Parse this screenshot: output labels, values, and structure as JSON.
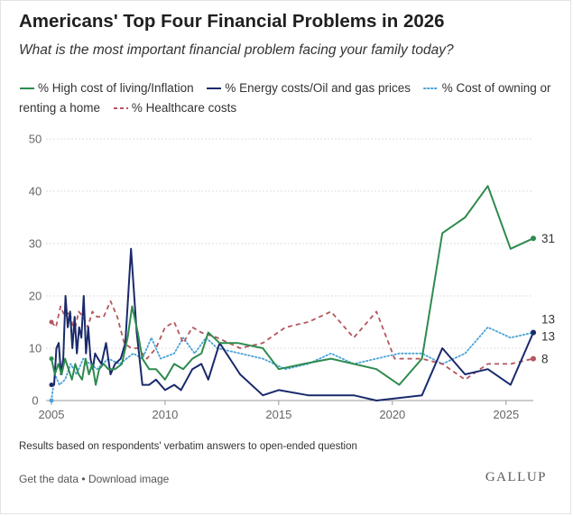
{
  "header": {
    "title": "Americans' Top Four Financial Problems in 2026",
    "subtitle": "What is the most important financial problem facing your family today?"
  },
  "legend": {
    "items": [
      {
        "label": "% High cost of living/Inflation",
        "color": "#2e8b4f",
        "style": "solid"
      },
      {
        "label": "% Energy costs/Oil and gas prices",
        "color": "#1a2a6c",
        "style": "solid"
      },
      {
        "label": "% Cost of owning or renting a home",
        "color": "#4aa3d8",
        "style": "dotted"
      },
      {
        "label": "% Healthcare costs",
        "color": "#b5565f",
        "style": "dashed"
      }
    ]
  },
  "note": "Results based on respondents' verbatim answers to open-ended question",
  "footer": {
    "get_data": "Get the data",
    "separator": "•",
    "download": "Download image",
    "logo": "GALLUP"
  },
  "chart_data": {
    "type": "line",
    "xlim": [
      2005,
      2026.2
    ],
    "ylim": [
      0,
      50
    ],
    "y_ticks": [
      0,
      10,
      20,
      30,
      40,
      50
    ],
    "x_ticks": [
      2005,
      2010,
      2015,
      2020,
      2025
    ],
    "grid": "horizontal",
    "series": [
      {
        "name": "% High cost of living/Inflation",
        "color": "#2e8b4f",
        "style": "solid",
        "end_label": "31",
        "points": [
          [
            2005.0,
            8
          ],
          [
            2005.15,
            5
          ],
          [
            2005.3,
            7
          ],
          [
            2005.45,
            5
          ],
          [
            2005.6,
            8
          ],
          [
            2005.75,
            6
          ],
          [
            2005.9,
            4
          ],
          [
            2006.05,
            7
          ],
          [
            2006.2,
            5
          ],
          [
            2006.35,
            4
          ],
          [
            2006.5,
            8
          ],
          [
            2006.65,
            5
          ],
          [
            2006.8,
            7
          ],
          [
            2006.95,
            3
          ],
          [
            2007.1,
            6
          ],
          [
            2007.3,
            7
          ],
          [
            2007.5,
            6
          ],
          [
            2007.8,
            6
          ],
          [
            2008.1,
            7
          ],
          [
            2008.35,
            12
          ],
          [
            2008.55,
            18
          ],
          [
            2008.8,
            13
          ],
          [
            2009.0,
            8
          ],
          [
            2009.3,
            6
          ],
          [
            2009.6,
            6
          ],
          [
            2010.0,
            4
          ],
          [
            2010.4,
            7
          ],
          [
            2010.8,
            6
          ],
          [
            2011.2,
            8
          ],
          [
            2011.6,
            9
          ],
          [
            2011.9,
            13
          ],
          [
            2012.4,
            11
          ],
          [
            2013.2,
            11
          ],
          [
            2014.3,
            10
          ],
          [
            2015.0,
            6
          ],
          [
            2016.1,
            7
          ],
          [
            2017.3,
            8
          ],
          [
            2018.3,
            7
          ],
          [
            2019.3,
            6
          ],
          [
            2020.3,
            3
          ],
          [
            2021.3,
            8
          ],
          [
            2022.2,
            32
          ],
          [
            2023.2,
            35
          ],
          [
            2024.2,
            41
          ],
          [
            2025.2,
            29
          ],
          [
            2026.2,
            31
          ]
        ]
      },
      {
        "name": "% Energy costs/Oil and gas prices",
        "color": "#1a2a6c",
        "style": "solid",
        "end_label": "13",
        "points": [
          [
            2005.0,
            3
          ],
          [
            2005.12,
            3
          ],
          [
            2005.22,
            10
          ],
          [
            2005.32,
            11
          ],
          [
            2005.42,
            5
          ],
          [
            2005.52,
            8
          ],
          [
            2005.62,
            20
          ],
          [
            2005.72,
            14
          ],
          [
            2005.82,
            17
          ],
          [
            2005.92,
            10
          ],
          [
            2006.02,
            16
          ],
          [
            2006.12,
            9
          ],
          [
            2006.22,
            14
          ],
          [
            2006.32,
            12
          ],
          [
            2006.42,
            20
          ],
          [
            2006.52,
            9
          ],
          [
            2006.62,
            14
          ],
          [
            2006.72,
            8
          ],
          [
            2006.82,
            6
          ],
          [
            2006.92,
            9
          ],
          [
            2007.05,
            8
          ],
          [
            2007.2,
            7
          ],
          [
            2007.4,
            11
          ],
          [
            2007.6,
            5
          ],
          [
            2007.8,
            7
          ],
          [
            2008.05,
            8
          ],
          [
            2008.25,
            11
          ],
          [
            2008.5,
            29
          ],
          [
            2008.75,
            13
          ],
          [
            2009.0,
            3
          ],
          [
            2009.3,
            3
          ],
          [
            2009.6,
            4
          ],
          [
            2010.0,
            2
          ],
          [
            2010.4,
            3
          ],
          [
            2010.7,
            2
          ],
          [
            2011.2,
            6
          ],
          [
            2011.6,
            7
          ],
          [
            2011.9,
            4
          ],
          [
            2012.4,
            11
          ],
          [
            2013.3,
            5
          ],
          [
            2014.3,
            1
          ],
          [
            2015.0,
            2
          ],
          [
            2016.3,
            1
          ],
          [
            2017.3,
            1
          ],
          [
            2018.3,
            1
          ],
          [
            2019.3,
            0
          ],
          [
            2020.3,
            0.5
          ],
          [
            2021.3,
            1
          ],
          [
            2022.2,
            10
          ],
          [
            2023.2,
            5
          ],
          [
            2024.2,
            6
          ],
          [
            2025.2,
            3
          ],
          [
            2026.2,
            13
          ]
        ]
      },
      {
        "name": "% Cost of owning or renting a home",
        "color": "#4aa3d8",
        "style": "dotted",
        "end_label": "13",
        "points": [
          [
            2005.0,
            0
          ],
          [
            2005.15,
            5
          ],
          [
            2005.35,
            3
          ],
          [
            2005.6,
            4
          ],
          [
            2005.85,
            7
          ],
          [
            2006.1,
            5
          ],
          [
            2006.4,
            8
          ],
          [
            2006.7,
            7
          ],
          [
            2007.0,
            6
          ],
          [
            2007.5,
            8
          ],
          [
            2008.0,
            7
          ],
          [
            2008.6,
            9
          ],
          [
            2009.0,
            8
          ],
          [
            2009.4,
            12
          ],
          [
            2009.8,
            8
          ],
          [
            2010.4,
            9
          ],
          [
            2010.8,
            12
          ],
          [
            2011.3,
            9
          ],
          [
            2011.8,
            12
          ],
          [
            2012.3,
            10
          ],
          [
            2013.3,
            9
          ],
          [
            2014.3,
            8
          ],
          [
            2015.3,
            6
          ],
          [
            2016.3,
            7
          ],
          [
            2017.3,
            9
          ],
          [
            2018.3,
            7
          ],
          [
            2019.3,
            8
          ],
          [
            2020.3,
            9
          ],
          [
            2021.3,
            9
          ],
          [
            2022.2,
            7
          ],
          [
            2023.2,
            9
          ],
          [
            2024.2,
            14
          ],
          [
            2025.2,
            12
          ],
          [
            2026.2,
            13
          ]
        ]
      },
      {
        "name": "% Healthcare costs",
        "color": "#b5565f",
        "style": "dashed",
        "end_label": "8",
        "points": [
          [
            2005.0,
            15
          ],
          [
            2005.2,
            14
          ],
          [
            2005.4,
            18
          ],
          [
            2005.6,
            16
          ],
          [
            2005.8,
            17
          ],
          [
            2006.0,
            13
          ],
          [
            2006.2,
            17
          ],
          [
            2006.4,
            16
          ],
          [
            2006.6,
            14
          ],
          [
            2006.8,
            17
          ],
          [
            2007.0,
            16
          ],
          [
            2007.3,
            16
          ],
          [
            2007.6,
            19
          ],
          [
            2007.9,
            16
          ],
          [
            2008.2,
            11
          ],
          [
            2008.5,
            10
          ],
          [
            2008.8,
            10
          ],
          [
            2009.2,
            8
          ],
          [
            2009.6,
            10
          ],
          [
            2010.0,
            14
          ],
          [
            2010.4,
            15
          ],
          [
            2010.8,
            11
          ],
          [
            2011.2,
            14
          ],
          [
            2011.6,
            13
          ],
          [
            2012.3,
            12
          ],
          [
            2013.3,
            10
          ],
          [
            2014.3,
            11
          ],
          [
            2015.3,
            14
          ],
          [
            2016.3,
            15
          ],
          [
            2017.3,
            17
          ],
          [
            2018.3,
            12
          ],
          [
            2019.3,
            17
          ],
          [
            2020.1,
            8
          ],
          [
            2021.3,
            8
          ],
          [
            2022.2,
            7
          ],
          [
            2023.2,
            4
          ],
          [
            2024.2,
            7
          ],
          [
            2025.2,
            7
          ],
          [
            2026.2,
            8
          ]
        ]
      }
    ]
  }
}
